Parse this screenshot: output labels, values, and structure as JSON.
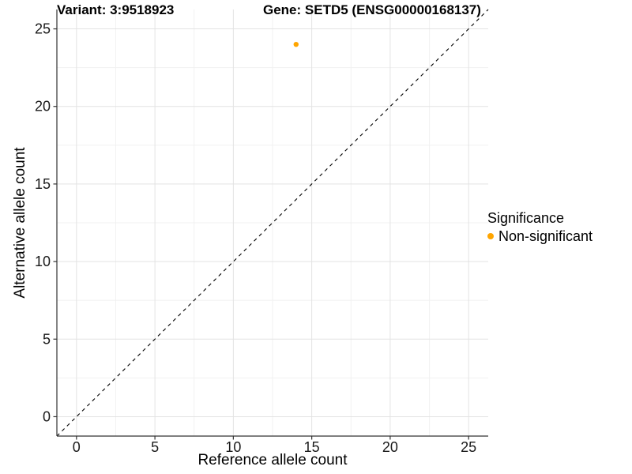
{
  "header": {
    "variant_title": "Variant: 3:9518923",
    "gene_title": "Gene: SETD5 (ENSG00000168137)"
  },
  "axes": {
    "x_label": "Reference allele count",
    "y_label": "Alternative allele count"
  },
  "legend": {
    "title": "Significance",
    "items": [
      {
        "label": "Non-significant",
        "color": "#FFA500"
      }
    ]
  },
  "colors": {
    "background": "#FFFFFF",
    "major_grid": "#E3E3E3",
    "minor_grid": "#F1F1F1",
    "axis_line": "#333333",
    "tick_text": "#1a1a1a",
    "identity_line": "#000000",
    "point": "#FFA500"
  },
  "chart_data": {
    "type": "scatter",
    "title_left": "Variant: 3:9518923",
    "title_right": "Gene: SETD5 (ENSG00000168137)",
    "xlabel": "Reference allele count",
    "ylabel": "Alternative allele count",
    "xlim": [
      -1.25,
      26.25
    ],
    "ylim": [
      -1.25,
      26.25
    ],
    "x_ticks": [
      0,
      5,
      10,
      15,
      20,
      25
    ],
    "y_ticks": [
      0,
      5,
      10,
      15,
      20,
      25
    ],
    "grid": "major+minor",
    "legend_position": "right",
    "series": [
      {
        "name": "Non-significant",
        "color": "#FFA500",
        "points": [
          {
            "x": 14,
            "y": 24
          }
        ]
      }
    ],
    "reference_line": {
      "kind": "identity",
      "slope": 1,
      "intercept": 0,
      "style": "dashed",
      "color": "#000000"
    }
  }
}
